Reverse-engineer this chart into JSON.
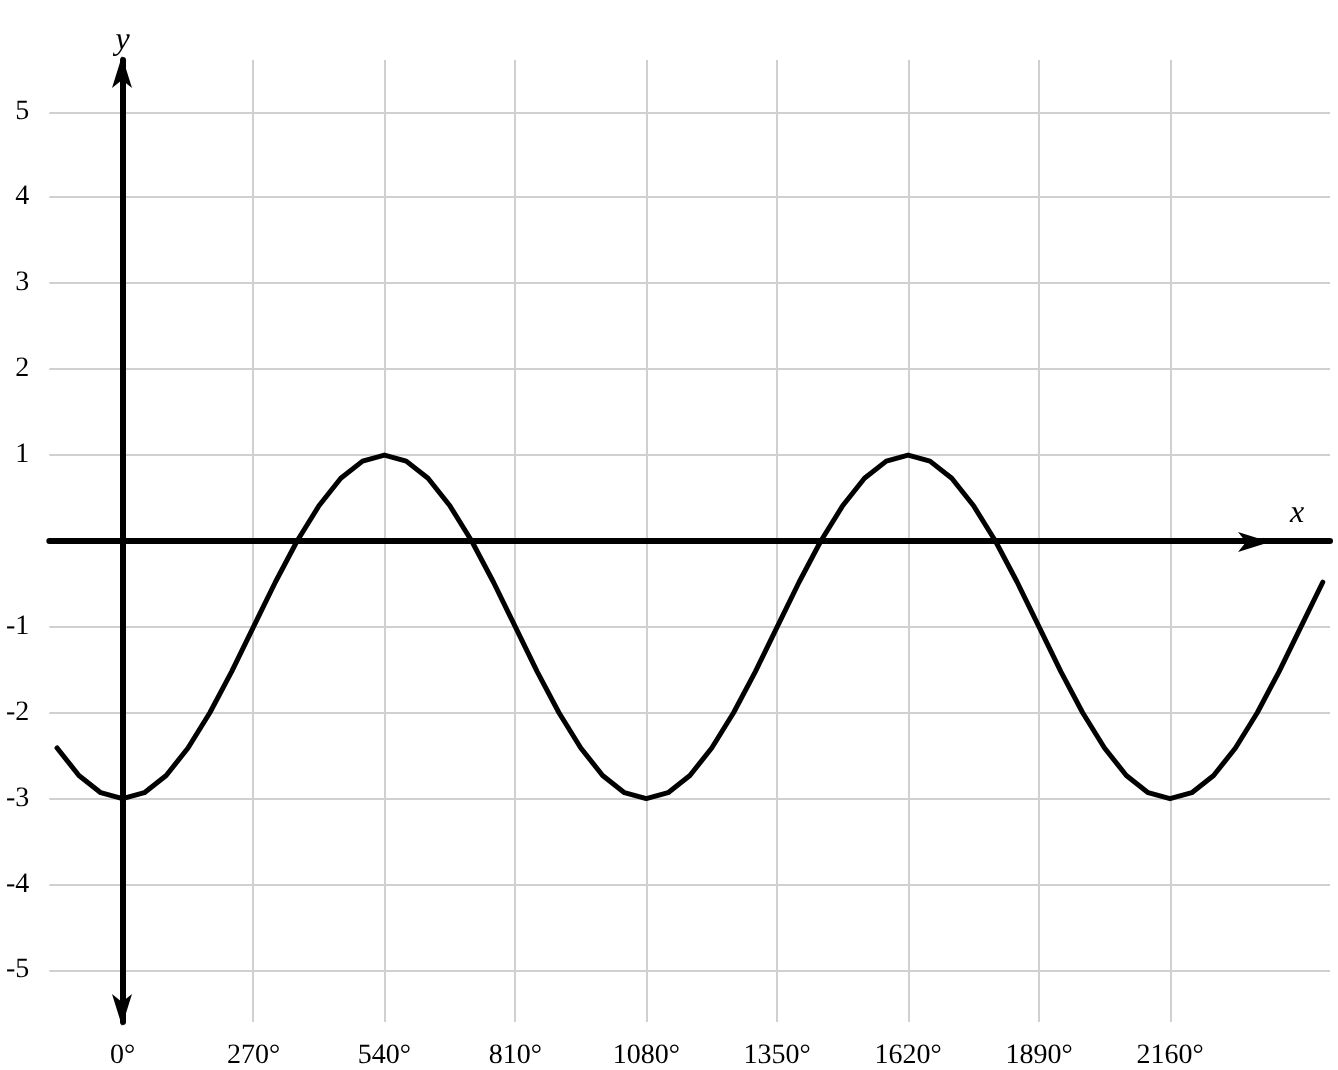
{
  "chart_data": {
    "type": "line",
    "xlabel": "x",
    "ylabel": "y",
    "x": [
      -135,
      -90,
      -45,
      0,
      45,
      90,
      135,
      180,
      225,
      270,
      315,
      360,
      405,
      450,
      495,
      540,
      585,
      630,
      675,
      720,
      765,
      810,
      855,
      900,
      945,
      990,
      1035,
      1080,
      1125,
      1170,
      1215,
      1260,
      1305,
      1350,
      1395,
      1440,
      1485,
      1530,
      1575,
      1620,
      1665,
      1710,
      1755,
      1800,
      1845,
      1890,
      1935,
      1980,
      2025,
      2070,
      2115,
      2160,
      2205,
      2250,
      2295,
      2340,
      2385,
      2430,
      2475
    ],
    "series": [
      {
        "color": "#000000",
        "values": [
          -2.41,
          -2.73,
          -2.93,
          -3,
          -2.93,
          -2.73,
          -2.41,
          -2,
          -1.52,
          -1,
          -0.48,
          0,
          0.41,
          0.73,
          0.93,
          1,
          0.93,
          0.73,
          0.41,
          0,
          -0.48,
          -1,
          -1.52,
          -2,
          -2.41,
          -2.73,
          -2.93,
          -3,
          -2.93,
          -2.73,
          -2.41,
          -2,
          -1.52,
          -1,
          -0.48,
          0,
          0.41,
          0.73,
          0.93,
          1,
          0.93,
          0.73,
          0.41,
          0,
          -0.48,
          -1,
          -1.52,
          -2,
          -2.41,
          -2.73,
          -2.93,
          -3,
          -2.93,
          -2.73,
          -2.41,
          -2,
          -1.52,
          -1,
          -0.48
        ]
      }
    ],
    "xlim": [
      -151,
      2490
    ],
    "ylim": [
      -5.6,
      5.6
    ],
    "xticks": [
      {
        "value": 0,
        "label": "0°"
      },
      {
        "value": 270,
        "label": "270°"
      },
      {
        "value": 540,
        "label": "540°"
      },
      {
        "value": 810,
        "label": "810°"
      },
      {
        "value": 1080,
        "label": "1080°"
      },
      {
        "value": 1350,
        "label": "1350°"
      },
      {
        "value": 1620,
        "label": "1620°"
      },
      {
        "value": 1890,
        "label": "1890°"
      },
      {
        "value": 2160,
        "label": "2160°"
      }
    ],
    "yticks": [
      -5,
      -4,
      -3,
      -2,
      -1,
      {
        "value": 0,
        "label": null
      },
      1,
      2,
      3,
      4,
      5
    ],
    "grid": true,
    "marker": "none",
    "line_style": "solid"
  }
}
